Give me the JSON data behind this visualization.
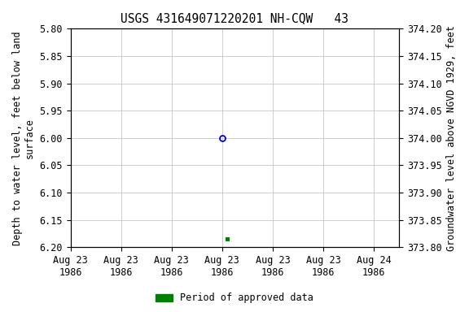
{
  "title": "USGS 431649071220201 NH-CQW   43",
  "left_ylabel_line1": "Depth to water level, feet below land",
  "left_ylabel_line2": "surface",
  "right_ylabel": "Groundwater level above NGVD 1929, feet",
  "ylim_left_top": 5.8,
  "ylim_left_bottom": 6.2,
  "ylim_right_top": 374.2,
  "ylim_right_bottom": 373.8,
  "xlim": [
    0.0,
    6.5
  ],
  "xtick_positions": [
    0,
    1,
    2,
    3,
    4,
    5,
    6
  ],
  "xtick_labels": [
    "Aug 23\n1986",
    "Aug 23\n1986",
    "Aug 23\n1986",
    "Aug 23\n1986",
    "Aug 23\n1986",
    "Aug 23\n1986",
    "Aug 24\n1986"
  ],
  "yticks_left": [
    5.8,
    5.85,
    5.9,
    5.95,
    6.0,
    6.05,
    6.1,
    6.15,
    6.2
  ],
  "ytick_labels_left": [
    "5.80",
    "5.85",
    "5.90",
    "5.95",
    "6.00",
    "6.05",
    "6.10",
    "6.15",
    "6.20"
  ],
  "yticks_right": [
    374.2,
    374.15,
    374.1,
    374.05,
    374.0,
    373.95,
    373.9,
    373.85,
    373.8
  ],
  "ytick_labels_right": [
    "374.20",
    "374.15",
    "374.10",
    "374.05",
    "374.00",
    "373.95",
    "373.90",
    "373.85",
    "373.80"
  ],
  "point_blue_x": 3.0,
  "point_blue_y": 6.0,
  "point_green_x": 3.1,
  "point_green_y": 6.185,
  "blue_color": "#0000cc",
  "green_color": "#008000",
  "background_color": "#ffffff",
  "grid_color": "#bbbbbb",
  "legend_label": "Period of approved data",
  "title_fontsize": 10.5,
  "label_fontsize": 8.5,
  "tick_fontsize": 8.5
}
